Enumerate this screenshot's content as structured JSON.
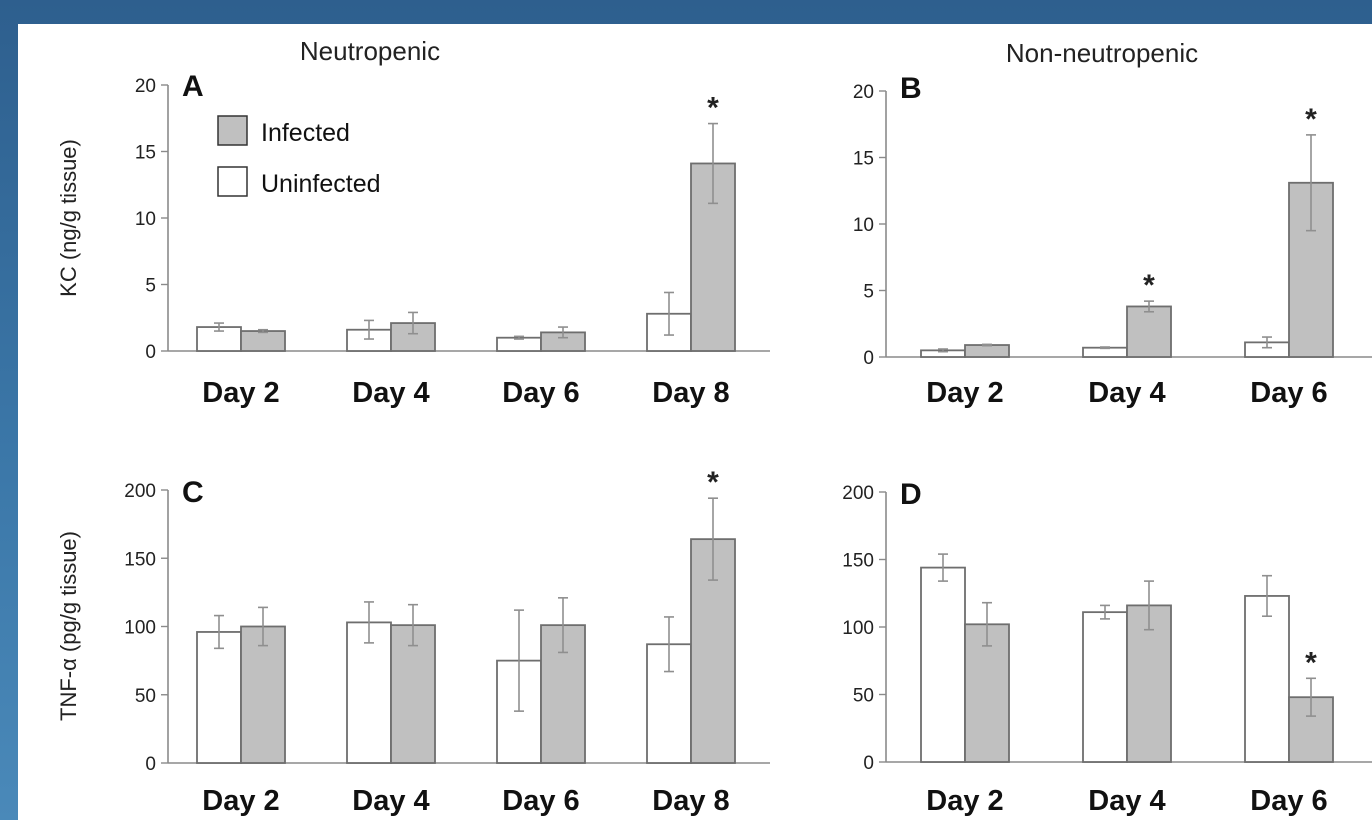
{
  "colors": {
    "infected": "#c0c0c0",
    "uninfected": "#ffffff",
    "bar_edge": "#6e6e6e",
    "background": "#3b77a8"
  },
  "chart_data": [
    {
      "panel": "A",
      "title": "Neutropenic",
      "type": "bar",
      "ylabel": "KC (ng/g tissue)",
      "ylim": [
        0,
        20
      ],
      "yticks": [
        0,
        5,
        10,
        15,
        20
      ],
      "categories": [
        "Day 2",
        "Day 4",
        "Day 6",
        "Day 8"
      ],
      "series": [
        {
          "name": "Uninfected",
          "values": [
            1.8,
            1.6,
            1.0,
            2.8
          ],
          "errors": [
            0.3,
            0.7,
            0.1,
            1.6
          ]
        },
        {
          "name": "Infected",
          "values": [
            1.5,
            2.1,
            1.4,
            14.1
          ],
          "errors": [
            0.1,
            0.8,
            0.4,
            3.0
          ]
        }
      ],
      "significant": [
        false,
        false,
        false,
        true
      ],
      "legend": [
        "Infected",
        "Uninfected"
      ]
    },
    {
      "panel": "B",
      "title": "Non-neutropenic",
      "type": "bar",
      "ylabel": "",
      "ylim": [
        0,
        20
      ],
      "yticks": [
        0,
        5,
        10,
        15,
        20
      ],
      "categories": [
        "Day 2",
        "Day 4",
        "Day 6"
      ],
      "series": [
        {
          "name": "Uninfected",
          "values": [
            0.5,
            0.7,
            1.1
          ],
          "errors": [
            0.1,
            0.05,
            0.4
          ]
        },
        {
          "name": "Infected",
          "values": [
            0.9,
            3.8,
            13.1
          ],
          "errors": [
            0.05,
            0.4,
            3.6
          ]
        }
      ],
      "significant": [
        false,
        true,
        true
      ]
    },
    {
      "panel": "C",
      "title": "",
      "type": "bar",
      "ylabel": "TNF-α (pg/g tissue)",
      "ylim": [
        0,
        200
      ],
      "yticks": [
        0,
        50,
        100,
        150,
        200
      ],
      "categories": [
        "Day 2",
        "Day 4",
        "Day 6",
        "Day 8"
      ],
      "series": [
        {
          "name": "Uninfected",
          "values": [
            96,
            103,
            75,
            87
          ],
          "errors": [
            12,
            15,
            37,
            20
          ]
        },
        {
          "name": "Infected",
          "values": [
            100,
            101,
            101,
            164
          ],
          "errors": [
            14,
            15,
            20,
            30
          ]
        }
      ],
      "significant": [
        false,
        false,
        false,
        true
      ]
    },
    {
      "panel": "D",
      "title": "",
      "type": "bar",
      "ylabel": "",
      "ylim": [
        0,
        200
      ],
      "yticks": [
        0,
        50,
        100,
        150,
        200
      ],
      "categories": [
        "Day 2",
        "Day 4",
        "Day 6"
      ],
      "series": [
        {
          "name": "Uninfected",
          "values": [
            144,
            111,
            123
          ],
          "errors": [
            10,
            5,
            15
          ]
        },
        {
          "name": "Infected",
          "values": [
            102,
            116,
            48
          ],
          "errors": [
            16,
            18,
            14
          ]
        }
      ],
      "significant": [
        false,
        false,
        true
      ]
    }
  ]
}
